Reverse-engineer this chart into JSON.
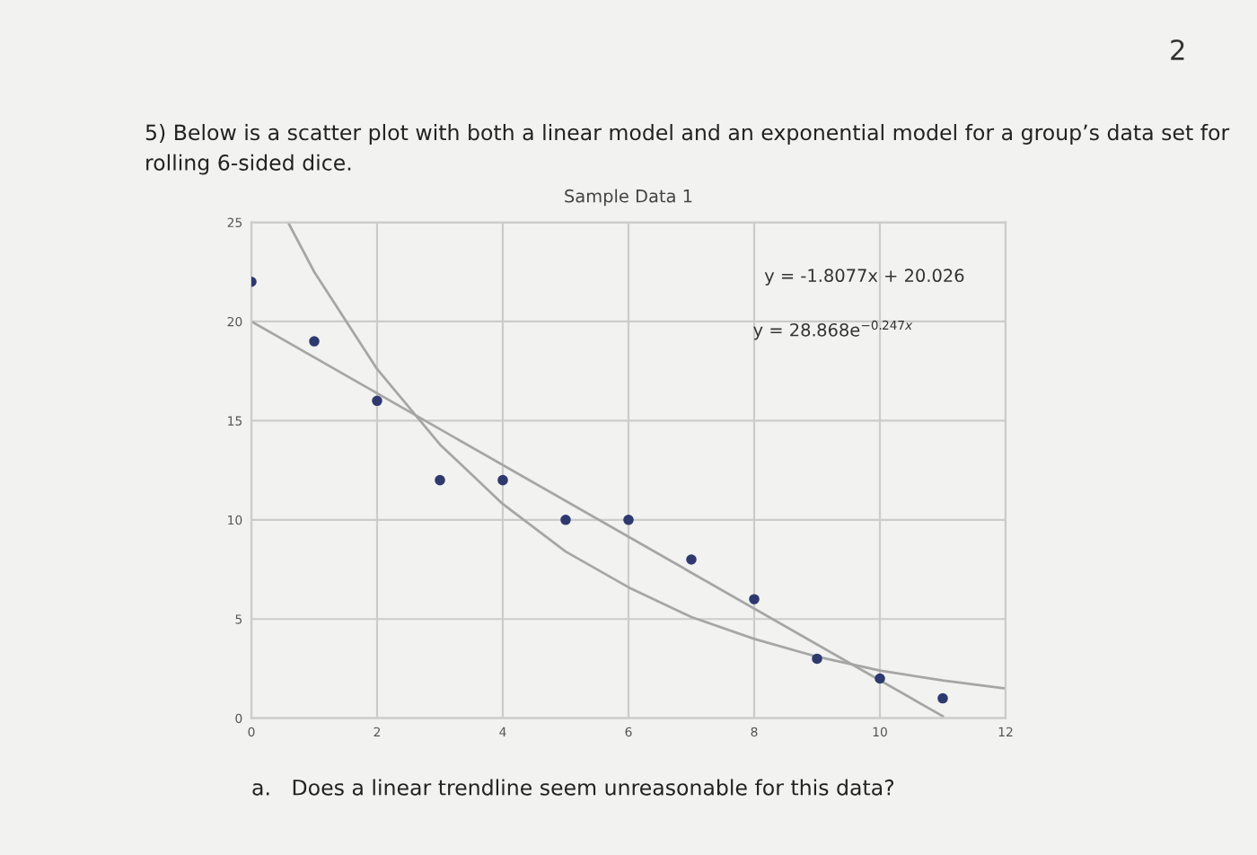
{
  "chart_data": {
    "type": "scatter",
    "title": "Sample Data 1",
    "x": [
      0,
      1,
      2,
      3,
      4,
      5,
      6,
      7,
      8,
      9,
      10,
      11
    ],
    "series": [
      {
        "color": "#2e3a6e",
        "marker": "circle",
        "values": [
          22,
          19,
          16,
          12,
          12,
          10,
          10,
          8,
          6,
          3,
          2,
          1
        ]
      },
      {
        "type": "line",
        "marker": "none",
        "color": "#a6a6a6",
        "x": [
          0,
          11
        ],
        "values": [
          20.0,
          0.1
        ]
      },
      {
        "type": "line",
        "marker": "none",
        "color": "#a6a6a6",
        "x": [
          0.6,
          1,
          2,
          3,
          4,
          5,
          6,
          7,
          8,
          9,
          10,
          11,
          12
        ],
        "values": [
          24.9,
          22.5,
          17.6,
          13.8,
          10.8,
          8.4,
          6.6,
          5.1,
          4.0,
          3.1,
          2.4,
          1.9,
          1.5
        ]
      }
    ],
    "xlim": [
      0,
      12
    ],
    "xticks": [
      0,
      2,
      4,
      6,
      8,
      10,
      12
    ],
    "ylim": [
      0,
      25
    ],
    "yticks": [
      0,
      5,
      10,
      15,
      20,
      25
    ],
    "grid": true,
    "line_style": "solid",
    "annotations": [
      "2",
      "5) Below is a scatter plot with both a linear model and an exponential model for a group’s data set for rolling 6-sided dice.",
      "y = -1.8077x + 20.026",
      "y = 28.868e$^{−0.247x}$",
      "a.   Does a linear trendline seem unreasonable for this data?"
    ]
  }
}
